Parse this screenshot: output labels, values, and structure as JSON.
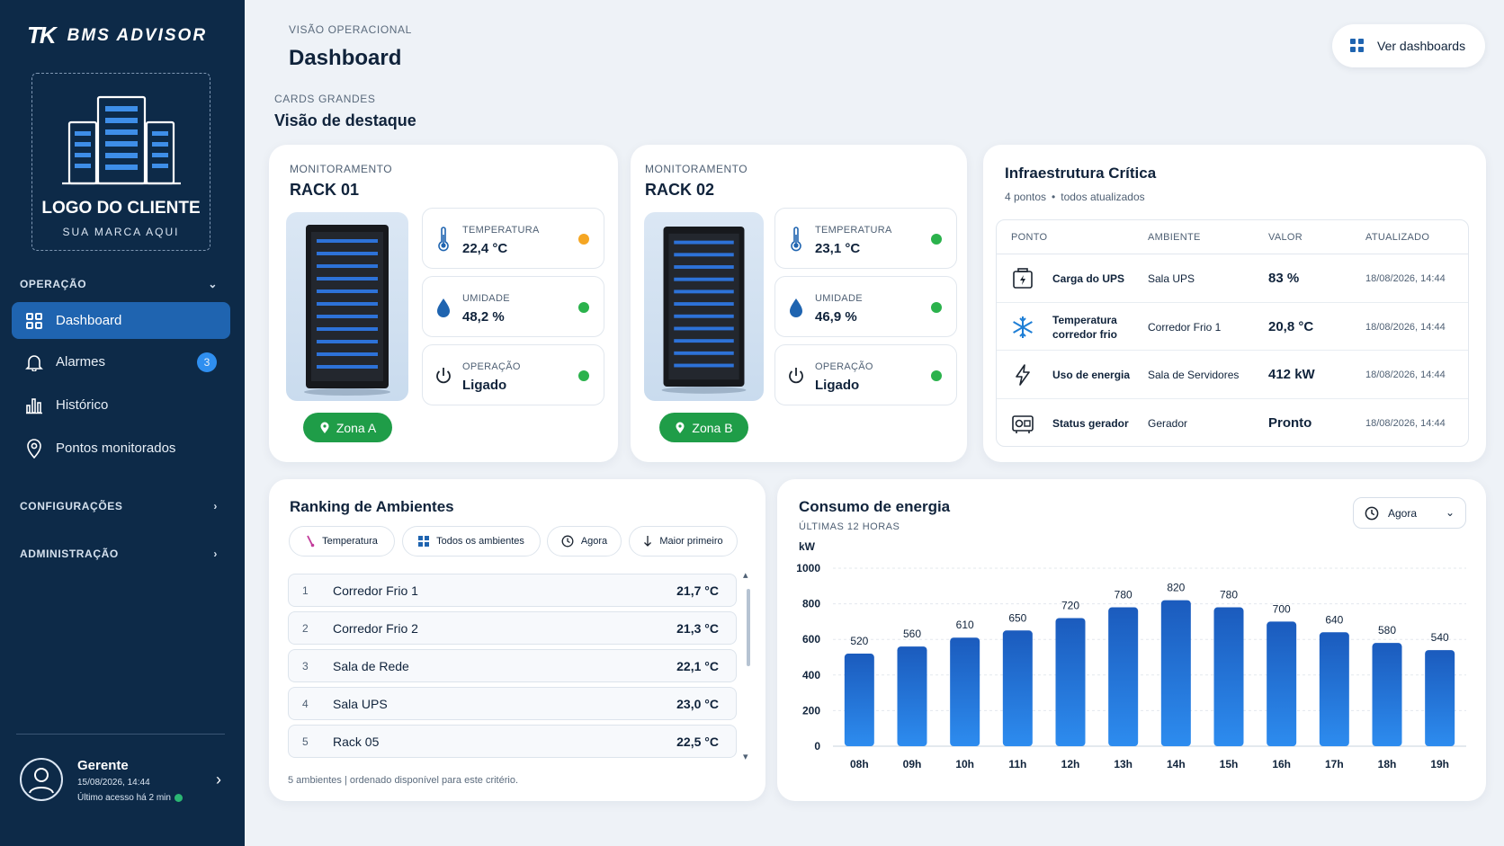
{
  "sidebar": {
    "brand_mark": "TK",
    "brand_name": "BMS ADVISOR",
    "logo_title": "LOGO DO CLIENTE",
    "logo_subtitle": "SUA MARCA AQUI",
    "sections": {
      "operacao": "OPERAÇÃO",
      "configuracoes": "CONFIGURAÇÕES",
      "administracao": "ADMINISTRAÇÃO"
    },
    "nav": [
      {
        "label": "Dashboard",
        "icon": "grid-icon",
        "active": true
      },
      {
        "label": "Alarmes",
        "icon": "bell-icon",
        "badge": "3"
      },
      {
        "label": "Histórico",
        "icon": "bar-chart-icon"
      },
      {
        "label": "Pontos monitorados",
        "icon": "location-pin-icon"
      }
    ],
    "user": {
      "name": "Gerente",
      "datetime": "15/08/2026, 14:44",
      "last_access": "Último acesso há 2 min"
    }
  },
  "header": {
    "eyebrow": "VISÃO OPERACIONAL",
    "title": "Dashboard",
    "section_eyebrow": "CARDS GRANDES",
    "section_title": "Visão de destaque",
    "dashboards_button": "Ver dashboards"
  },
  "racks": [
    {
      "eyebrow": "MONITORAMENTO",
      "title": "RACK 01",
      "zone": "Zona A",
      "metrics": [
        {
          "label": "TEMPERATURA",
          "value": "22,4 °C",
          "status_color": "#f5a623",
          "icon": "thermometer-icon"
        },
        {
          "label": "UMIDADE",
          "value": "48,2 %",
          "status_color": "#2bb24c",
          "icon": "droplet-icon"
        },
        {
          "label": "OPERAÇÃO",
          "value": "Ligado",
          "status_color": "#2bb24c",
          "icon": "power-icon"
        }
      ]
    },
    {
      "eyebrow": "MONITORAMENTO",
      "title": "RACK 02",
      "zone": "Zona B",
      "metrics": [
        {
          "label": "TEMPERATURA",
          "value": "23,1 °C",
          "status_color": "#2bb24c",
          "icon": "thermometer-icon"
        },
        {
          "label": "UMIDADE",
          "value": "46,9 %",
          "status_color": "#2bb24c",
          "icon": "droplet-icon"
        },
        {
          "label": "OPERAÇÃO",
          "value": "Ligado",
          "status_color": "#2bb24c",
          "icon": "power-icon"
        }
      ]
    }
  ],
  "infra": {
    "title": "Infraestrutura Crítica",
    "subtitle_count": "4 pontos",
    "subtitle_status": "todos atualizados",
    "columns": [
      "PONTO",
      "AMBIENTE",
      "VALOR",
      "ATUALIZADO"
    ],
    "rows": [
      {
        "icon": "battery-icon",
        "name": "Carga do UPS",
        "ambiente": "Sala UPS",
        "valor": "83 %",
        "atualizado": "18/08/2026, 14:44"
      },
      {
        "icon": "snowflake-icon",
        "name": "Temperatura corredor frio",
        "ambiente": "Corredor Frio 1",
        "valor": "20,8 °C",
        "atualizado": "18/08/2026, 14:44"
      },
      {
        "icon": "lightning-icon",
        "name": "Uso de energia",
        "ambiente": "Sala de Servidores",
        "valor": "412 kW",
        "atualizado": "18/08/2026, 14:44"
      },
      {
        "icon": "generator-icon",
        "name": "Status gerador",
        "ambiente": "Gerador",
        "valor": "Pronto",
        "atualizado": "18/08/2026, 14:44"
      }
    ]
  },
  "ranking": {
    "title": "Ranking de Ambientes",
    "filters": [
      {
        "label": "Temperatura",
        "icon": "thermometer-icon"
      },
      {
        "label": "Todos os ambientes",
        "icon": "grid-icon"
      },
      {
        "label": "Agora",
        "icon": "clock-icon"
      },
      {
        "label": "Maior primeiro",
        "icon": "arrow-down-icon"
      }
    ],
    "items": [
      {
        "rank": "1",
        "name": "Corredor Frio 1",
        "value": "21,7 °C"
      },
      {
        "rank": "2",
        "name": "Corredor Frio 2",
        "value": "21,3 °C"
      },
      {
        "rank": "3",
        "name": "Sala de Rede",
        "value": "22,1 °C"
      },
      {
        "rank": "4",
        "name": "Sala UPS",
        "value": "23,0 °C"
      },
      {
        "rank": "5",
        "name": "Rack 05",
        "value": "22,5 °C"
      }
    ],
    "footer": "5 ambientes | ordenado disponível para este critério."
  },
  "energy": {
    "title": "Consumo de energia",
    "subtitle": "ÚLTIMAS 12 HORAS",
    "period_select": "Agora"
  },
  "colors": {
    "sidebar_bg": "#0d2a48",
    "accent": "#1f64b0",
    "bar_top": "#1b5bbd",
    "bar_bottom": "#2d8cef",
    "zone_green": "#1f9d48"
  },
  "chart_data": {
    "type": "bar",
    "title": "Consumo de energia",
    "subtitle": "ÚLTIMAS 12 HORAS",
    "ylabel": "kW",
    "xlabel": "",
    "categories": [
      "08h",
      "09h",
      "10h",
      "11h",
      "12h",
      "13h",
      "14h",
      "15h",
      "16h",
      "17h",
      "18h",
      "19h"
    ],
    "values": [
      520,
      560,
      610,
      650,
      720,
      780,
      820,
      780,
      700,
      640,
      580,
      540
    ],
    "ylim": [
      0,
      1000
    ],
    "yticks": [
      0,
      200,
      400,
      600,
      800,
      1000
    ],
    "grid": true,
    "data_labels": true
  }
}
